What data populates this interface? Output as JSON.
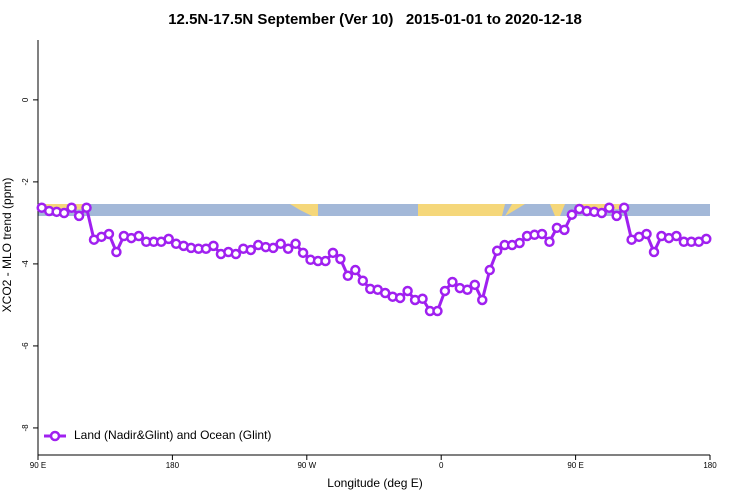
{
  "chart_data": {
    "type": "line",
    "title": "12.5N-17.5N September (Ver 10)   2015-01-01 to 2020-12-18",
    "xlabel": "Longitude (deg E)",
    "ylabel": "XCO2 - MLO trend (ppm)",
    "xlim": [
      90,
      540
    ],
    "ylim": [
      -8.66,
      1.46
    ],
    "xticks": [
      {
        "value": 90,
        "label": "90 E"
      },
      180,
      {
        "value": 270,
        "label": "90 W"
      },
      {
        "value": 360,
        "label": "0"
      },
      {
        "value": 450,
        "label": "90 E"
      },
      {
        "value": 540,
        "label": "180"
      }
    ],
    "yticks": [
      0,
      -2,
      -4,
      -6,
      -8
    ],
    "legend": "bottom-left",
    "x": [
      92.5,
      97.5,
      102.5,
      107.5,
      112.5,
      117.5,
      122.5,
      127.5,
      132.5,
      137.5,
      142.5,
      147.5,
      152.5,
      157.5,
      162.5,
      167.5,
      172.5,
      177.5,
      182.5,
      187.5,
      192.5,
      197.5,
      202.5,
      207.5,
      212.5,
      217.5,
      222.5,
      227.5,
      232.5,
      237.5,
      242.5,
      247.5,
      252.5,
      257.5,
      262.5,
      267.5,
      272.5,
      277.5,
      282.5,
      287.5,
      292.5,
      297.5,
      302.5,
      307.5,
      312.5,
      317.5,
      322.5,
      327.5,
      332.5,
      337.5,
      342.5,
      347.5,
      352.5,
      357.5,
      362.5,
      367.5,
      372.5,
      377.5,
      382.5,
      387.5,
      392.5,
      397.5,
      402.5,
      407.5,
      412.5,
      417.5,
      422.5,
      427.5,
      432.5,
      437.5,
      442.5,
      447.5,
      452.5,
      457.5,
      462.5,
      467.5,
      472.5,
      477.5,
      482.5,
      487.5,
      492.5,
      497.5,
      502.5,
      507.5,
      512.5,
      517.5,
      522.5,
      527.5,
      532.5,
      537.5
    ],
    "series": [
      {
        "name": "Land (Nadir&Glint) and Ocean (Glint)",
        "color": "#a020f0",
        "values": [
          -2.63,
          -2.71,
          -2.73,
          -2.76,
          -2.63,
          -2.83,
          -2.63,
          -3.41,
          -3.34,
          -3.27,
          -3.71,
          -3.32,
          -3.37,
          -3.32,
          -3.46,
          -3.46,
          -3.46,
          -3.39,
          -3.51,
          -3.56,
          -3.61,
          -3.63,
          -3.63,
          -3.56,
          -3.76,
          -3.71,
          -3.76,
          -3.63,
          -3.66,
          -3.54,
          -3.59,
          -3.61,
          -3.51,
          -3.63,
          -3.51,
          -3.73,
          -3.9,
          -3.93,
          -3.93,
          -3.73,
          -3.88,
          -4.29,
          -4.15,
          -4.41,
          -4.61,
          -4.63,
          -4.71,
          -4.8,
          -4.83,
          -4.66,
          -4.88,
          -4.85,
          -5.15,
          -5.15,
          -4.66,
          -4.44,
          -4.59,
          -4.63,
          -4.51,
          -4.88,
          -4.15,
          -3.68,
          -3.54,
          -3.54,
          -3.49,
          -3.32,
          -3.29,
          -3.27,
          -3.46,
          -3.12,
          -3.17,
          -2.8,
          -2.66,
          -2.71,
          -2.73,
          -2.76,
          -2.63,
          -2.83,
          -2.63,
          -3.41,
          -3.34,
          -3.27,
          -3.71,
          -3.32,
          -3.37,
          -3.32,
          -3.46,
          -3.46,
          -3.46,
          -3.39
        ]
      }
    ]
  }
}
